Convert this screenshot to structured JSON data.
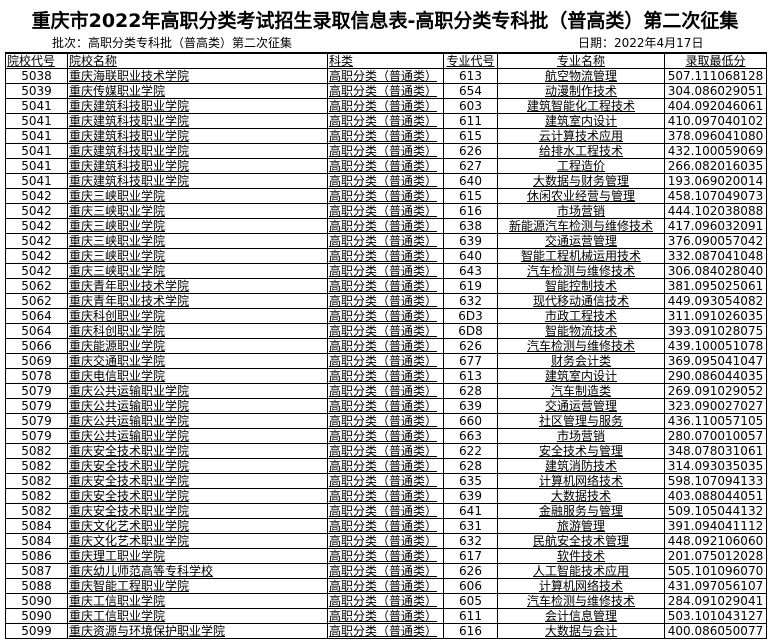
{
  "title": "重庆市2022年高职分类考试招生录取信息表-高职分类专科批（普高类）第二次征集",
  "batch": "批次：高职分类专科批（普高类）第二次征集",
  "date": "日期：2022年4月17日",
  "headers": [
    "院校代号",
    "院校名称",
    "科类",
    "专业代号",
    "专业名称",
    "录取最低分"
  ],
  "rows": [
    [
      "5038",
      "重庆海联职业技术学院",
      "高职分类（普通类）",
      "613",
      "航空物流管理",
      "507.111068128"
    ],
    [
      "5039",
      "重庆传媒职业学院",
      "高职分类（普通类）",
      "654",
      "动漫制作技术",
      "304.086029051"
    ],
    [
      "5041",
      "重庆建筑科技职业学院",
      "高职分类（普通类）",
      "603",
      "建筑智能化工程技术",
      "404.092046061"
    ],
    [
      "5041",
      "重庆建筑科技职业学院",
      "高职分类（普通类）",
      "611",
      "建筑室内设计",
      "410.097040102"
    ],
    [
      "5041",
      "重庆建筑科技职业学院",
      "高职分类（普通类）",
      "615",
      "云计算技术应用",
      "378.096041080"
    ],
    [
      "5041",
      "重庆建筑科技职业学院",
      "高职分类（普通类）",
      "626",
      "给排水工程技术",
      "432.100059069"
    ],
    [
      "5041",
      "重庆建筑科技职业学院",
      "高职分类（普通类）",
      "627",
      "工程造价",
      "266.082016035"
    ],
    [
      "5041",
      "重庆建筑科技职业学院",
      "高职分类（普通类）",
      "640",
      "大数据与财务管理",
      "193.069020014"
    ],
    [
      "5042",
      "重庆三峡职业学院",
      "高职分类（普通类）",
      "615",
      "休闲农业经营与管理",
      "458.107049073"
    ],
    [
      "5042",
      "重庆三峡职业学院",
      "高职分类（普通类）",
      "616",
      "市场营销",
      "444.102038088"
    ],
    [
      "5042",
      "重庆三峡职业学院",
      "高职分类（普通类）",
      "638",
      "新能源汽车检测与维修技术",
      "417.096032091"
    ],
    [
      "5042",
      "重庆三峡职业学院",
      "高职分类（普通类）",
      "639",
      "交通运营管理",
      "376.090057042"
    ],
    [
      "5042",
      "重庆三峡职业学院",
      "高职分类（普通类）",
      "640",
      "智能工程机械运用技术",
      "332.087041048"
    ],
    [
      "5042",
      "重庆三峡职业学院",
      "高职分类（普通类）",
      "643",
      "汽车检测与维修技术",
      "306.084028040"
    ],
    [
      "5062",
      "重庆青年职业技术学院",
      "高职分类（普通类）",
      "619",
      "智能控制技术",
      "381.095025061"
    ],
    [
      "5062",
      "重庆青年职业技术学院",
      "高职分类（普通类）",
      "632",
      "现代移动通信技术",
      "449.093054082"
    ],
    [
      "5064",
      "重庆科创职业学院",
      "高职分类（普通类）",
      "6D3",
      "市政工程技术",
      "311.091026035"
    ],
    [
      "5064",
      "重庆科创职业学院",
      "高职分类（普通类）",
      "6D8",
      "智能物流技术",
      "393.091028075"
    ],
    [
      "5066",
      "重庆能源职业学院",
      "高职分类（普通类）",
      "626",
      "汽车检测与维修技术",
      "439.100051078"
    ],
    [
      "5069",
      "重庆交通职业学院",
      "高职分类（普通类）",
      "677",
      "财务会计类",
      "369.095041047"
    ],
    [
      "5078",
      "重庆电信职业学院",
      "高职分类（普通类）",
      "613",
      "建筑室内设计",
      "290.086044035"
    ],
    [
      "5079",
      "重庆公共运输职业学院",
      "高职分类（普通类）",
      "628",
      "汽车制造类",
      "269.091029052"
    ],
    [
      "5079",
      "重庆公共运输职业学院",
      "高职分类（普通类）",
      "639",
      "交通运营管理",
      "323.090027027"
    ],
    [
      "5079",
      "重庆公共运输职业学院",
      "高职分类（普通类）",
      "660",
      "社区管理与服务",
      "436.110057105"
    ],
    [
      "5079",
      "重庆公共运输职业学院",
      "高职分类（普通类）",
      "663",
      "市场营销",
      "280.070010057"
    ],
    [
      "5082",
      "重庆安全技术职业学院",
      "高职分类（普通类）",
      "622",
      "安全技术与管理",
      "348.078031061"
    ],
    [
      "5082",
      "重庆安全技术职业学院",
      "高职分类（普通类）",
      "628",
      "建筑消防技术",
      "314.093035035"
    ],
    [
      "5082",
      "重庆安全技术职业学院",
      "高职分类（普通类）",
      "635",
      "计算机网络技术",
      "598.107094133"
    ],
    [
      "5082",
      "重庆安全技术职业学院",
      "高职分类（普通类）",
      "639",
      "大数据技术",
      "403.088044051"
    ],
    [
      "5082",
      "重庆安全技术职业学院",
      "高职分类（普通类）",
      "641",
      "金融服务与管理",
      "509.105044132"
    ],
    [
      "5084",
      "重庆文化艺术职业学院",
      "高职分类（普通类）",
      "631",
      "旅游管理",
      "391.094041112"
    ],
    [
      "5084",
      "重庆文化艺术职业学院",
      "高职分类（普通类）",
      "632",
      "民航安全技术管理",
      "448.092106060"
    ],
    [
      "5086",
      "重庆理工职业学院",
      "高职分类（普通类）",
      "617",
      "软件技术",
      "201.075012028"
    ],
    [
      "5087",
      "重庆幼儿师范高等专科学校",
      "高职分类（普通类）",
      "626",
      "人工智能技术应用",
      "505.101096070"
    ],
    [
      "5088",
      "重庆智能工程职业学院",
      "高职分类（普通类）",
      "606",
      "计算机网络技术",
      "431.097056107"
    ],
    [
      "5090",
      "重庆工信职业学院",
      "高职分类（普通类）",
      "605",
      "汽车检测与维修技术",
      "284.091029041"
    ],
    [
      "5090",
      "重庆工信职业学院",
      "高职分类（普通类）",
      "611",
      "会计信息管理",
      "503.101043127"
    ],
    [
      "5099",
      "重庆资源与环境保护职业学院",
      "高职分类（普通类）",
      "616",
      "大数据与会计",
      "400.086050077"
    ]
  ]
}
